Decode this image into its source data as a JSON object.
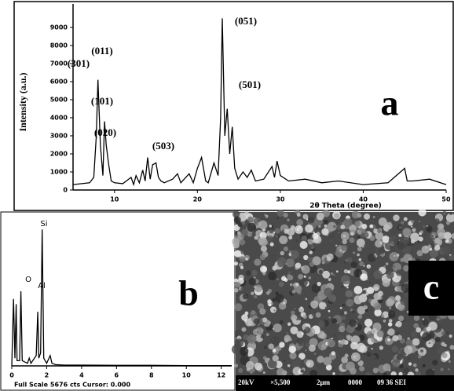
{
  "chart_data": [
    {
      "type": "line",
      "panel_label": "a",
      "x_label": "2θ Theta (degree)",
      "y_label": "Intensity (a.u.)",
      "color": "#000000",
      "x": [
        5,
        7,
        7.5,
        7.8,
        8.0,
        8.3,
        8.6,
        8.8,
        9.0,
        9.3,
        9.6,
        10,
        11,
        12,
        12.3,
        12.6,
        13,
        13.4,
        13.7,
        14,
        14.3,
        14.6,
        15,
        15.3,
        15.6,
        16,
        17,
        17.6,
        18,
        19,
        19.5,
        20,
        20.5,
        21,
        21.3,
        22,
        22.5,
        22.8,
        23.0,
        23.3,
        23.6,
        23.9,
        24.2,
        24.5,
        24.9,
        25.5,
        26,
        26.5,
        27,
        28,
        29,
        29.3,
        29.6,
        30,
        31,
        33,
        35,
        37,
        40,
        43,
        44.5,
        45,
        45.3,
        46,
        48,
        50
      ],
      "values": [
        300,
        400,
        700,
        3000,
        6100,
        2500,
        800,
        3800,
        2500,
        1400,
        500,
        400,
        350,
        700,
        300,
        800,
        400,
        1100,
        500,
        1800,
        600,
        1400,
        1500,
        700,
        500,
        400,
        600,
        900,
        400,
        900,
        400,
        1200,
        1800,
        500,
        400,
        1500,
        800,
        4000,
        9500,
        3000,
        4500,
        2000,
        3500,
        1200,
        600,
        1000,
        700,
        1100,
        500,
        600,
        1300,
        700,
        1600,
        800,
        500,
        600,
        400,
        500,
        300,
        400,
        1000,
        1200,
        500,
        500,
        600,
        300
      ],
      "xlim": [
        5,
        50
      ],
      "ylim": [
        0,
        10300
      ],
      "xticks": [
        10,
        20,
        30,
        40,
        50
      ],
      "yticks": [
        0,
        1000,
        2000,
        3000,
        4000,
        5000,
        6000,
        7000,
        8000,
        9000
      ],
      "annotations": [
        "(011)",
        "(301)",
        "(101)",
        "(020)",
        "(503)",
        "(051)",
        "(501)"
      ]
    },
    {
      "type": "line",
      "panel_label": "b",
      "footer": "Full Scale 5676 cts Cursor: 0.000",
      "color": "#000000",
      "x": [
        0,
        0.1,
        0.18,
        0.25,
        0.3,
        0.45,
        0.52,
        0.6,
        0.9,
        1.0,
        1.1,
        1.4,
        1.49,
        1.55,
        1.65,
        1.74,
        1.83,
        2.0,
        2.2,
        2.3,
        2.5,
        3,
        4,
        6,
        8,
        10,
        12.6
      ],
      "values": [
        0,
        2600,
        300,
        2400,
        200,
        200,
        2900,
        200,
        100,
        300,
        100,
        400,
        2100,
        300,
        500,
        5300,
        300,
        100,
        400,
        100,
        50,
        30,
        30,
        20,
        20,
        10,
        10
      ],
      "xlim": [
        0,
        12.6
      ],
      "ylim": [
        0,
        5676
      ],
      "xticks": [
        0,
        2,
        4,
        6,
        8,
        10,
        12
      ],
      "annotations": [
        "Si",
        "O",
        "Al"
      ]
    }
  ],
  "image_c": {
    "panel_label": "c",
    "info_bar": [
      "20kV",
      "×5,500",
      "2μm",
      "0000",
      "09 36 SEI"
    ]
  }
}
